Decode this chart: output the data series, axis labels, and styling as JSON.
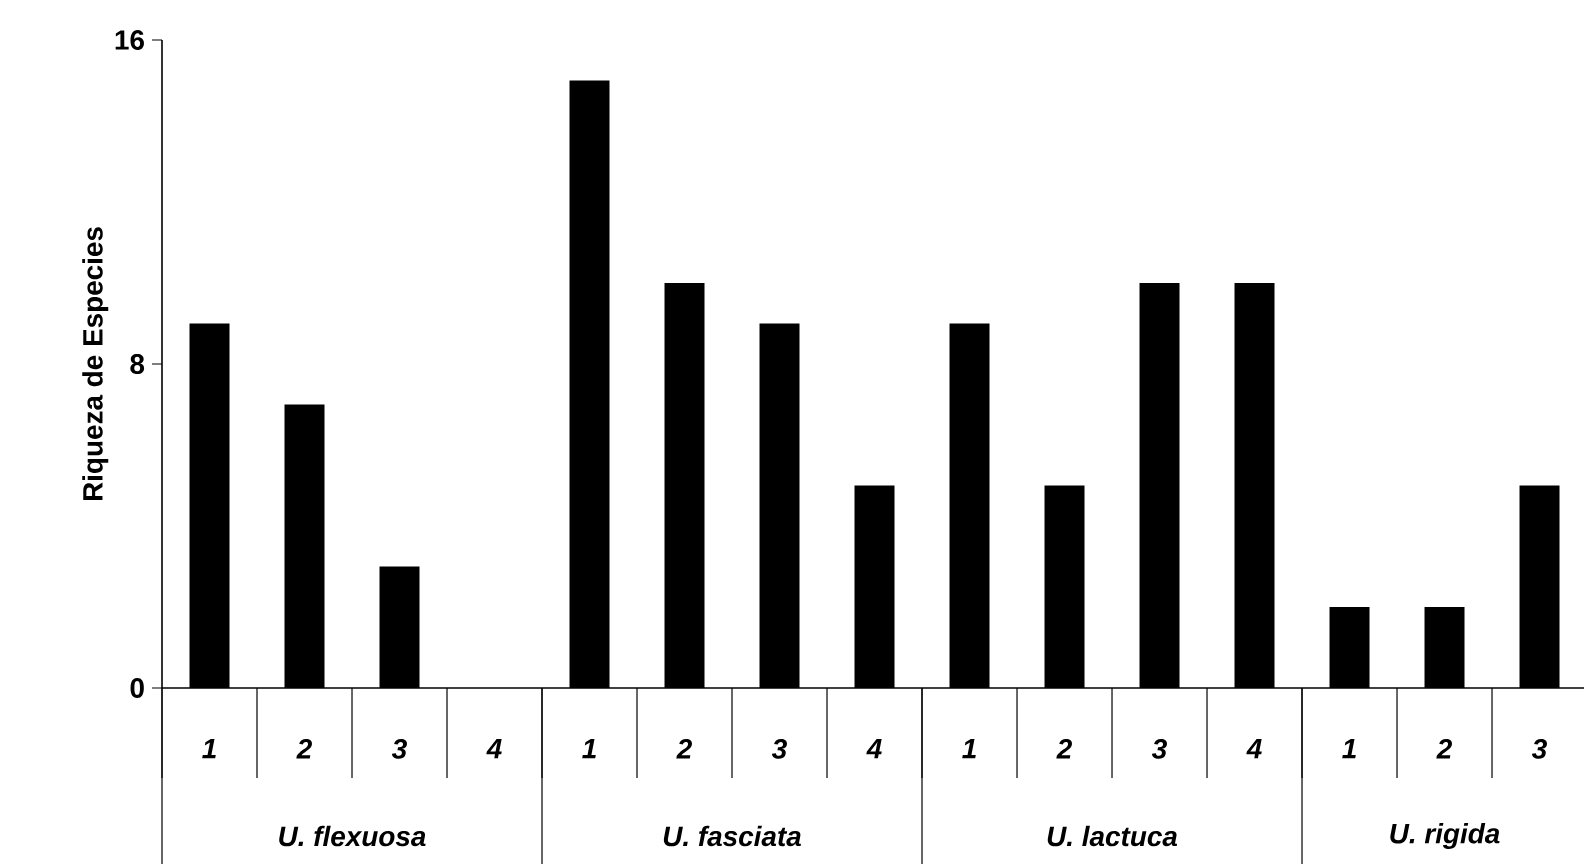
{
  "chart_data": {
    "type": "bar",
    "ylabel": "Riqueza de Especies",
    "categories": [
      "1",
      "2",
      "3",
      "4",
      "1",
      "2",
      "3",
      "4",
      "1",
      "2",
      "3",
      "4",
      "1",
      "2",
      "3"
    ],
    "values": [
      9,
      7,
      3,
      0,
      15,
      10,
      9,
      5,
      9,
      5,
      10,
      10,
      2,
      2,
      5
    ],
    "color": "#000000",
    "ylim": [
      0,
      16
    ],
    "yticks": [
      0,
      8,
      16
    ],
    "annotations": [
      "U. flexuosa",
      "U. fasciata",
      "U. lactuca",
      "U. rigida"
    ],
    "grid": false
  }
}
